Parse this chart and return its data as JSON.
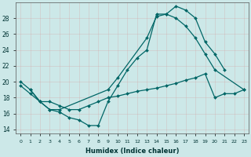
{
  "xlabel": "Humidex (Indice chaleur)",
  "bg_color": "#cce8e8",
  "grid_color": "#b0c8c8",
  "line_color": "#006666",
  "xlim": [
    -0.5,
    23.5
  ],
  "ylim": [
    13.5,
    30.0
  ],
  "yticks": [
    14,
    16,
    18,
    20,
    22,
    24,
    26,
    28
  ],
  "xticks": [
    0,
    1,
    2,
    3,
    4,
    5,
    6,
    7,
    8,
    9,
    10,
    11,
    12,
    13,
    14,
    15,
    16,
    17,
    18,
    19,
    20,
    21,
    22,
    23
  ],
  "line1_x": [
    0,
    1,
    2,
    3,
    4,
    5,
    6,
    7,
    8,
    9,
    10,
    11,
    12,
    13,
    14,
    15,
    16,
    17,
    18,
    19,
    20,
    21
  ],
  "line1_y": [
    20.0,
    19.0,
    17.5,
    16.5,
    16.2,
    15.5,
    15.2,
    14.5,
    14.5,
    17.5,
    19.5,
    21.5,
    23.0,
    24.0,
    28.5,
    28.5,
    29.5,
    29.0,
    28.0,
    25.0,
    23.5,
    21.5
  ],
  "line2_x": [
    1,
    2,
    3,
    4,
    9,
    10,
    13,
    14,
    15,
    16,
    17,
    18,
    19,
    20,
    23
  ],
  "line2_y": [
    19.0,
    17.5,
    16.5,
    16.5,
    19.0,
    20.5,
    25.5,
    28.2,
    28.5,
    28.0,
    27.0,
    25.5,
    23.5,
    21.5,
    19.0
  ],
  "line3_x": [
    0,
    1,
    2,
    3,
    4,
    5,
    6,
    7,
    8,
    9,
    10,
    11,
    12,
    13,
    14,
    15,
    16,
    17,
    18,
    19,
    20,
    21,
    22,
    23
  ],
  "line3_y": [
    19.5,
    18.5,
    17.5,
    17.5,
    17.0,
    16.5,
    16.5,
    17.0,
    17.5,
    18.0,
    18.2,
    18.5,
    18.8,
    19.0,
    19.2,
    19.5,
    19.8,
    20.2,
    20.5,
    21.0,
    18.0,
    18.5,
    18.5,
    19.0
  ]
}
